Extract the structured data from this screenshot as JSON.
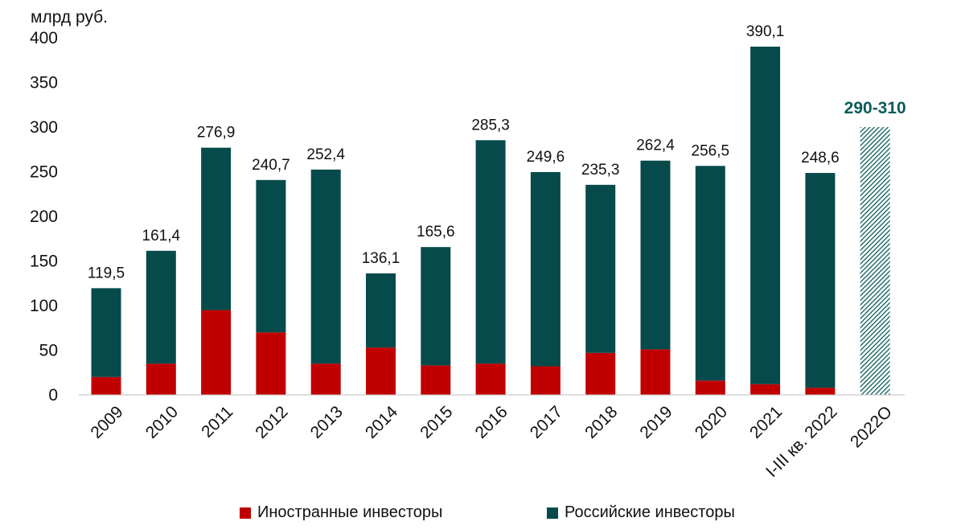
{
  "chart_data": {
    "type": "bar",
    "stacked": true,
    "unit_label": "млрд руб.",
    "categories": [
      "2009",
      "2010",
      "2011",
      "2012",
      "2013",
      "2014",
      "2015",
      "2016",
      "2017",
      "2018",
      "2019",
      "2020",
      "2021",
      "I-III кв. 2022",
      "2022О"
    ],
    "series": [
      {
        "name": "Иностранные инвесторы",
        "color": "#c00000",
        "values": [
          20,
          35,
          95,
          70,
          35,
          53,
          33,
          35,
          32,
          47,
          51,
          16,
          12,
          8,
          null
        ]
      },
      {
        "name": "Российские инвесторы",
        "color": "#074a4b",
        "values": [
          99.5,
          126.4,
          181.9,
          170.7,
          217.4,
          83.1,
          132.6,
          250.3,
          217.6,
          188.3,
          211.4,
          240.5,
          378.1,
          240.6,
          null
        ]
      }
    ],
    "totals": [
      "119,5",
      "161,4",
      "276,9",
      "240,7",
      "252,4",
      "136,1",
      "165,6",
      "285,3",
      "249,6",
      "235,3",
      "262,4",
      "256,5",
      "390,1",
      "248,6",
      ""
    ],
    "forecast": {
      "category": "2022О",
      "value": 300,
      "label": "290-310",
      "color": "#0b5c5c",
      "style": "hatched"
    },
    "yticks": [
      0,
      50,
      100,
      150,
      200,
      250,
      300,
      350,
      400
    ],
    "ylim": [
      0,
      400
    ],
    "grid": false,
    "legend_position": "bottom"
  }
}
